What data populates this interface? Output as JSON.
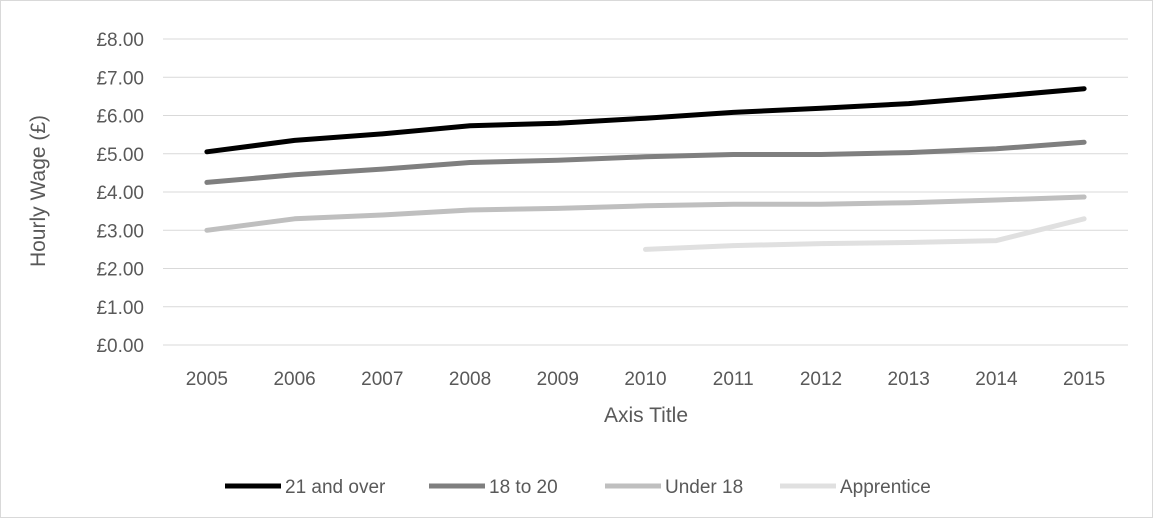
{
  "chart_data": {
    "type": "line",
    "title": "",
    "xlabel": "Axis Title",
    "ylabel": "Hourly Wage (£)",
    "categories": [
      "2005",
      "2006",
      "2007",
      "2008",
      "2009",
      "2010",
      "2011",
      "2012",
      "2013",
      "2014",
      "2015"
    ],
    "ylim": [
      0,
      8
    ],
    "yticks": [
      {
        "value": 0,
        "label": "£0.00"
      },
      {
        "value": 1,
        "label": "£1.00"
      },
      {
        "value": 2,
        "label": "£2.00"
      },
      {
        "value": 3,
        "label": "£3.00"
      },
      {
        "value": 4,
        "label": "£4.00"
      },
      {
        "value": 5,
        "label": "£5.00"
      },
      {
        "value": 6,
        "label": "£6.00"
      },
      {
        "value": 7,
        "label": "£7.00"
      },
      {
        "value": 8,
        "label": "£8.00"
      }
    ],
    "grid": true,
    "legend_position": "bottom",
    "series": [
      {
        "name": "21 and over",
        "color": "#000000",
        "values": [
          5.05,
          5.35,
          5.52,
          5.73,
          5.8,
          5.93,
          6.08,
          6.19,
          6.31,
          6.5,
          6.7
        ]
      },
      {
        "name": "18 to 20",
        "color": "#7f7f7f",
        "values": [
          4.25,
          4.45,
          4.6,
          4.77,
          4.83,
          4.92,
          4.98,
          4.98,
          5.03,
          5.13,
          5.3
        ]
      },
      {
        "name": "Under 18",
        "color": "#bfbfbf",
        "values": [
          3.0,
          3.3,
          3.4,
          3.53,
          3.57,
          3.64,
          3.68,
          3.68,
          3.72,
          3.79,
          3.87
        ]
      },
      {
        "name": "Apprentice",
        "color": "#e0e0e0",
        "values": [
          null,
          null,
          null,
          null,
          null,
          2.5,
          2.6,
          2.65,
          2.68,
          2.73,
          3.3
        ]
      }
    ]
  }
}
